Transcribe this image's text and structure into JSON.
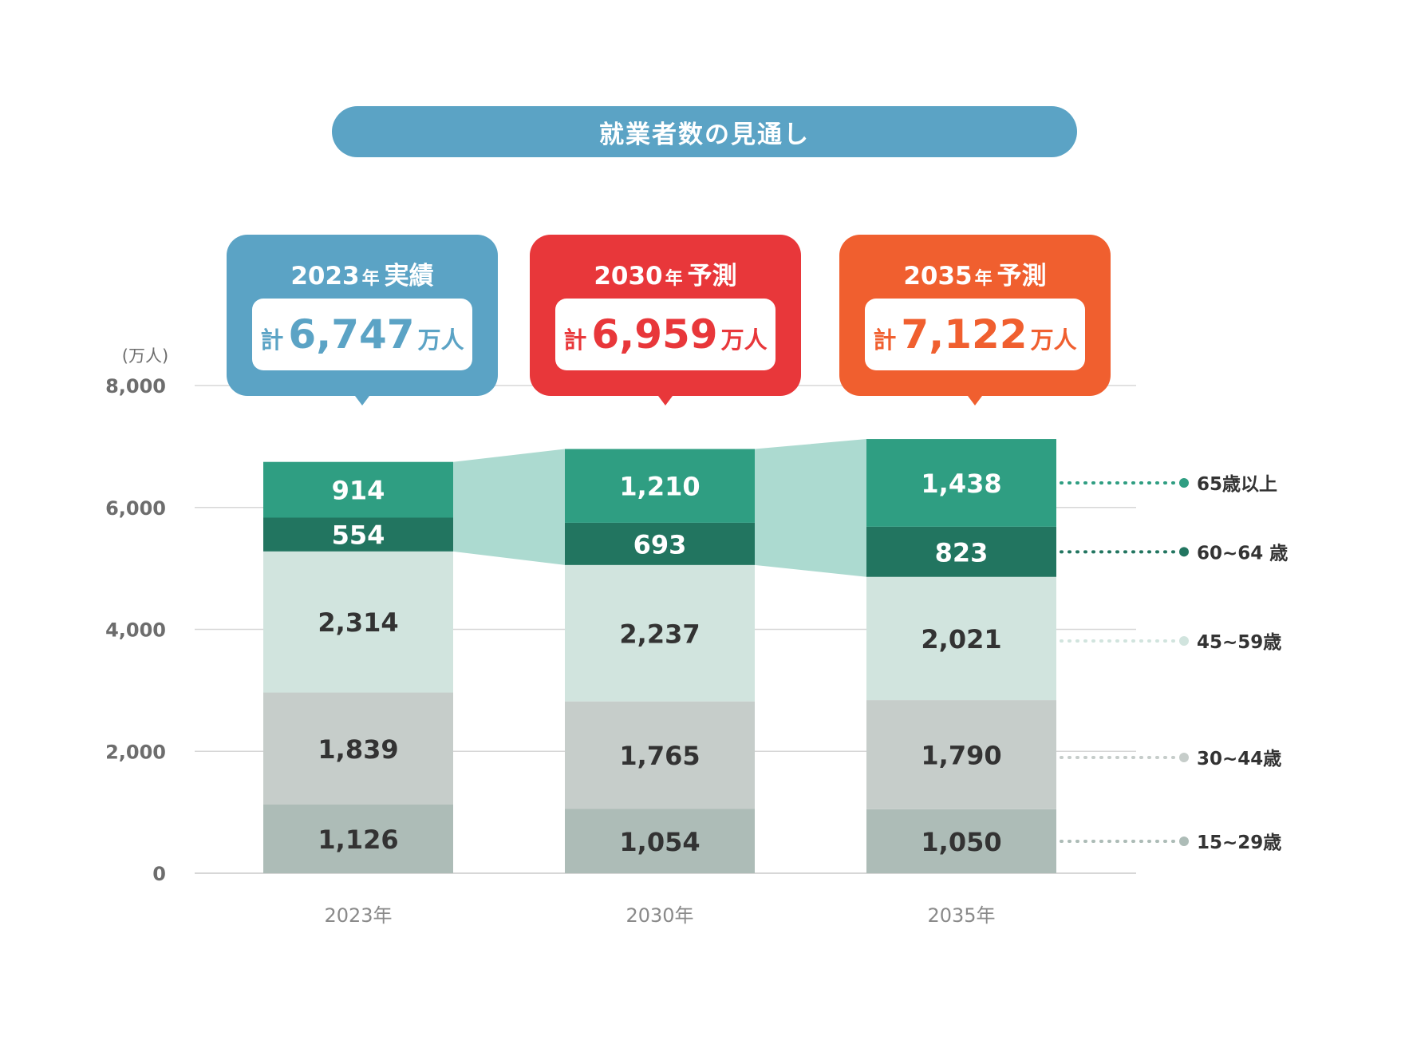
{
  "title": "就業者数の見通し",
  "colors": {
    "title_bg": "#5ba3c5",
    "callouts": [
      "#5ba3c5",
      "#e8373a",
      "#f05f2f"
    ],
    "segments": [
      "#adbcb7",
      "#c6cdca",
      "#d1e4de",
      "#227560",
      "#2f9e82"
    ],
    "connector": "#acdad0",
    "grid": "#d7d7d7",
    "axis_text": "#6d6d6d",
    "dark_text": "#333333"
  },
  "callouts": [
    {
      "year": "2023",
      "nen": "年",
      "kind": "実績",
      "prefix": "計",
      "total": "6,747",
      "unit": "万人"
    },
    {
      "year": "2030",
      "nen": "年",
      "kind": "予測",
      "prefix": "計",
      "total": "6,959",
      "unit": "万人"
    },
    {
      "year": "2035",
      "nen": "年",
      "kind": "予測",
      "prefix": "計",
      "total": "7,122",
      "unit": "万人"
    }
  ],
  "chart_data": {
    "type": "bar",
    "stacked": true,
    "ylabel": "(万人)",
    "ylim": [
      0,
      8000
    ],
    "yticks": [
      0,
      2000,
      4000,
      6000,
      8000
    ],
    "ytick_labels": [
      "0",
      "2,000",
      "4,000",
      "6,000",
      "8,000"
    ],
    "categories": [
      "2023年",
      "2030年",
      "2035年"
    ],
    "grid": true,
    "legend_position": "right",
    "series": [
      {
        "name": "15~29歳",
        "values": [
          1126,
          1054,
          1050
        ],
        "labels": [
          "1,126",
          "1,054",
          "1,050"
        ]
      },
      {
        "name": "30~44歳",
        "values": [
          1839,
          1765,
          1790
        ],
        "labels": [
          "1,839",
          "1,765",
          "1,790"
        ]
      },
      {
        "name": "45~59歳",
        "values": [
          2314,
          2237,
          2021
        ],
        "labels": [
          "2,314",
          "2,237",
          "2,021"
        ]
      },
      {
        "name": "60~64 歳",
        "values": [
          554,
          693,
          823
        ],
        "labels": [
          "554",
          "693",
          "823"
        ]
      },
      {
        "name": "65歳以上",
        "values": [
          914,
          1210,
          1438
        ],
        "labels": [
          "914",
          "1,210",
          "1,438"
        ]
      }
    ]
  }
}
